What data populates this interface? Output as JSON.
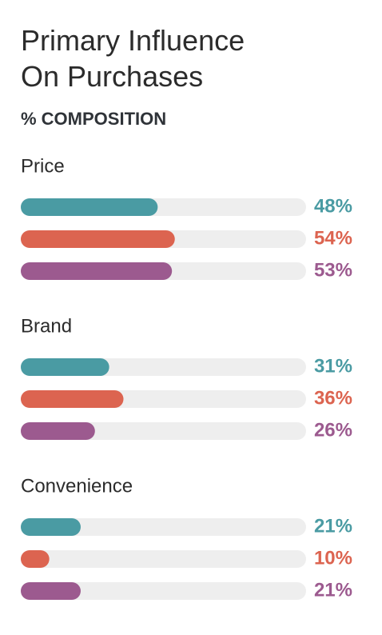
{
  "chart_data": {
    "type": "bar",
    "title": "Primary Influence On Purchases",
    "subtitle": "% COMPOSITION",
    "categories": [
      "Price",
      "Brand",
      "Convenience"
    ],
    "xlim": [
      0,
      100
    ],
    "series": [
      {
        "color": "#4a9ba3",
        "values": [
          48,
          31,
          21
        ],
        "value_labels": [
          "48%",
          "31%",
          "21%"
        ]
      },
      {
        "color": "#dc6450",
        "values": [
          54,
          36,
          10
        ],
        "value_labels": [
          "54%",
          "36%",
          "10%"
        ]
      },
      {
        "color": "#9c5a8f",
        "values": [
          53,
          26,
          21
        ],
        "value_labels": [
          "53%",
          "26%",
          "21%"
        ]
      }
    ]
  }
}
